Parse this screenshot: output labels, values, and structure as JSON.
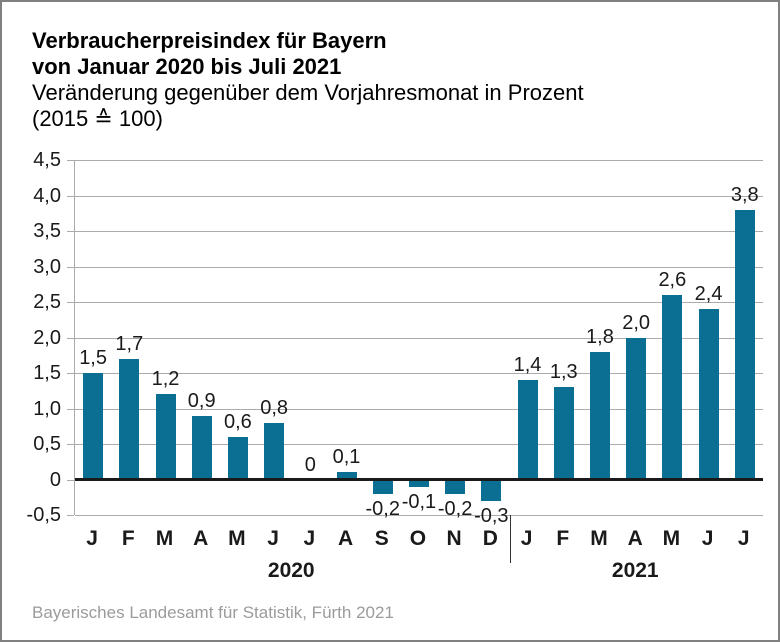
{
  "header": {
    "title_line1": "Verbraucherpreisindex für Bayern",
    "title_line2": "von Januar 2020 bis Juli 2021",
    "subtitle_line1": "Veränderung gegenüber dem Vorjahresmonat in Prozent",
    "subtitle_line2": "(2015 ≙ 100)"
  },
  "chart_data": {
    "type": "bar",
    "title": "Verbraucherpreisindex für Bayern von Januar 2020 bis Juli 2021",
    "subtitle": "Veränderung gegenüber dem Vorjahresmonat in Prozent (2015 ≙ 100)",
    "categories": [
      "J",
      "F",
      "M",
      "A",
      "M",
      "J",
      "J",
      "A",
      "S",
      "O",
      "N",
      "D",
      "J",
      "F",
      "M",
      "A",
      "M",
      "J",
      "J"
    ],
    "values": [
      1.5,
      1.7,
      1.2,
      0.9,
      0.6,
      0.8,
      0,
      0.1,
      -0.2,
      -0.1,
      -0.2,
      -0.3,
      1.4,
      1.3,
      1.8,
      2.0,
      2.6,
      2.4,
      3.8
    ],
    "value_labels": [
      "1,5",
      "1,7",
      "1,2",
      "0,9",
      "0,6",
      "0,8",
      "0",
      "0,1",
      "-0,2",
      "-0,1",
      "-0,2",
      "-0,3",
      "1,4",
      "1,3",
      "1,8",
      "2,0",
      "2,6",
      "2,4",
      "3,8"
    ],
    "groups": [
      {
        "label": "2020",
        "span": 12
      },
      {
        "label": "2021",
        "span": 7
      }
    ],
    "y_ticks": [
      {
        "value": 4.5,
        "label": "4,5"
      },
      {
        "value": 4.0,
        "label": "4,0"
      },
      {
        "value": 3.5,
        "label": "3,5"
      },
      {
        "value": 3.0,
        "label": "3,0"
      },
      {
        "value": 2.5,
        "label": "2,5"
      },
      {
        "value": 2.0,
        "label": "2,0"
      },
      {
        "value": 1.5,
        "label": "1,5"
      },
      {
        "value": 1.0,
        "label": "1,0"
      },
      {
        "value": 0.5,
        "label": "0,5"
      },
      {
        "value": 0,
        "label": "0"
      },
      {
        "value": -0.5,
        "label": "-0,5"
      }
    ],
    "ylim": [
      -0.5,
      4.5
    ],
    "grid": true,
    "xlabel": "",
    "ylabel": "",
    "legend": null,
    "bar_color": "#0b6e93",
    "grid_color": "#ababab",
    "zero_line_color": "#1a1a1a",
    "separator_color": "#333333"
  },
  "footer": {
    "source": "Bayerisches Landesamt für Statistik, Fürth 2021"
  }
}
